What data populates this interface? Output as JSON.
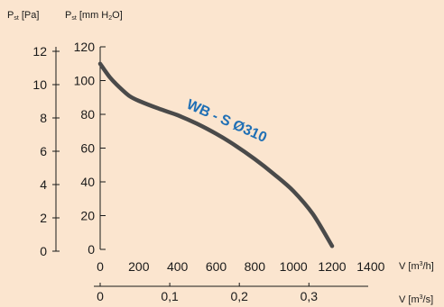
{
  "chart_data": {
    "type": "line",
    "title": "",
    "left_axis_label": {
      "main": "P",
      "sub": "st",
      "unit": " [Pa]"
    },
    "second_axis_label": {
      "main": "P",
      "sub": "st",
      "unit_pre": " [mm H",
      "unit_sub": "2",
      "unit_post": "O]"
    },
    "x_axis_label": {
      "main": "V [m",
      "sup": "3",
      "post": "/h]"
    },
    "x2_axis_label": {
      "main": "V [m",
      "sup": "3",
      "post": "/s]"
    },
    "pa_ticks": [
      "0",
      "2",
      "4",
      "6",
      "8",
      "10",
      "12"
    ],
    "mm_ticks": [
      "0",
      "20",
      "40",
      "60",
      "80",
      "100",
      "120"
    ],
    "x_ticks": [
      "0",
      "200",
      "400",
      "600",
      "800",
      "1000",
      "1200",
      "1400"
    ],
    "x2_ticks": [
      "0",
      "0,1",
      "0,2",
      "0,3"
    ],
    "x2_tick_values_m3h": [
      0,
      360,
      720,
      1080
    ],
    "ylim_mm": [
      0,
      120
    ],
    "xlim_m3h": [
      0,
      1400
    ],
    "series": [
      {
        "name": "WB - S Ø310",
        "color": "#4a4a4a",
        "label_color": "#1f6fb5",
        "x": [
          0,
          50,
          100,
          150,
          200,
          300,
          400,
          500,
          600,
          700,
          800,
          900,
          1000,
          1100,
          1200
        ],
        "y": [
          110,
          102,
          96,
          91,
          88,
          83.5,
          79.5,
          74.5,
          68.5,
          61.5,
          53.5,
          44.5,
          34.5,
          21,
          2
        ]
      }
    ],
    "grid": false,
    "colors": {
      "background": "#fbe5cf",
      "axis": "#1a1a1a"
    }
  }
}
